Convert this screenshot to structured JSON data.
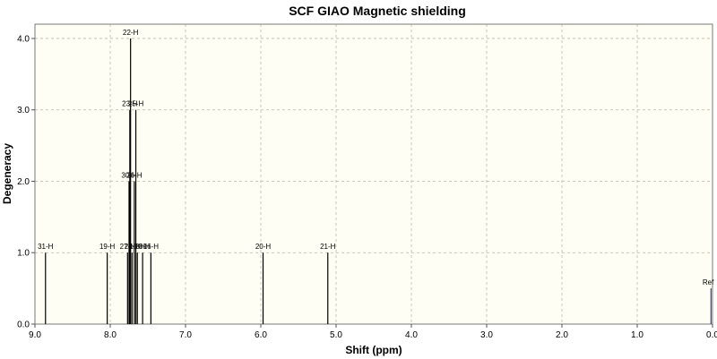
{
  "chart_data": {
    "type": "bar",
    "title": "SCF GIAO Magnetic shielding",
    "xlabel": "Shift (ppm)",
    "ylabel": "Degeneracy",
    "xlim": [
      9.0,
      0.0
    ],
    "ylim": [
      0,
      4.2
    ],
    "x_reversed": true,
    "x_ticks": [
      "9.0",
      "8.0",
      "7.0",
      "6.0",
      "5.0",
      "4.0",
      "3.0",
      "2.0",
      "1.0",
      "0.0"
    ],
    "y_ticks": [
      "0.0",
      "1.0",
      "2.0",
      "3.0",
      "4.0"
    ],
    "grid": true,
    "series": [
      {
        "peaks": [
          {
            "label": "31-H",
            "x": 8.86,
            "y": 1
          },
          {
            "label": "19-H",
            "x": 8.04,
            "y": 1
          },
          {
            "label": "27-H",
            "x": 7.77,
            "y": 1
          },
          {
            "label": "30-H",
            "x": 7.75,
            "y": 2
          },
          {
            "label": "23-H",
            "x": 7.74,
            "y": 3
          },
          {
            "label": "22-H",
            "x": 7.73,
            "y": 4
          },
          {
            "label": "24-H",
            "x": 7.71,
            "y": 1
          },
          {
            "label": "26-H",
            "x": 7.68,
            "y": 2
          },
          {
            "label": "25-H",
            "x": 7.66,
            "y": 3
          },
          {
            "label": "18-H",
            "x": 7.64,
            "y": 1
          },
          {
            "label": "28-H",
            "x": 7.57,
            "y": 1
          },
          {
            "label": "16-H",
            "x": 7.46,
            "y": 1
          },
          {
            "label": "20-H",
            "x": 5.97,
            "y": 1
          },
          {
            "label": "21-H",
            "x": 5.11,
            "y": 1
          },
          {
            "label": "Ref",
            "x": 0.02,
            "y": 0.5
          }
        ]
      }
    ],
    "line_color": "#000000",
    "ref_color": "#3a3aa8",
    "plot_background": "#fefef4"
  }
}
